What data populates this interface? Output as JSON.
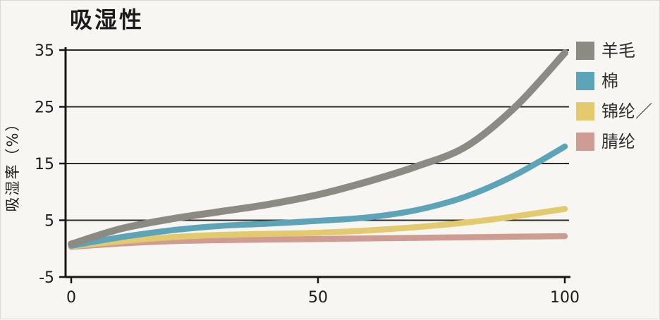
{
  "chart_data": {
    "type": "line",
    "title": "吸湿性",
    "xlabel": "",
    "ylabel": "吸湿率（%）",
    "x": [
      0,
      10,
      20,
      30,
      40,
      50,
      60,
      70,
      80,
      90,
      100
    ],
    "series": [
      {
        "name": "羊毛",
        "color": "#8b8b84",
        "values": [
          0.8,
          3.5,
          5.2,
          6.5,
          7.8,
          9.5,
          11.8,
          14.5,
          18,
          25,
          34.5
        ]
      },
      {
        "name": "棉",
        "color": "#5da4b8",
        "values": [
          0.5,
          2.0,
          3.2,
          4.0,
          4.4,
          4.9,
          5.5,
          6.8,
          9.2,
          13,
          18
        ]
      },
      {
        "name": "锦纶／",
        "color": "#e3ca6e",
        "values": [
          0.4,
          1.3,
          2.0,
          2.4,
          2.6,
          2.8,
          3.2,
          3.8,
          4.6,
          5.7,
          7.0
        ]
      },
      {
        "name": "腈纶",
        "color": "#cf9c93",
        "values": [
          0.3,
          0.9,
          1.3,
          1.5,
          1.6,
          1.7,
          1.8,
          1.9,
          2.0,
          2.1,
          2.2
        ]
      }
    ],
    "xlim": [
      0,
      100
    ],
    "ylim": [
      -5,
      35
    ],
    "xticks": [
      0,
      50,
      100
    ],
    "yticks": [
      35,
      25,
      15,
      5,
      -5
    ],
    "grid": true,
    "legend_position": "right",
    "axis_color": "#161616",
    "grid_color": "#2b2b2b",
    "text_color": "#1c1c1c"
  }
}
